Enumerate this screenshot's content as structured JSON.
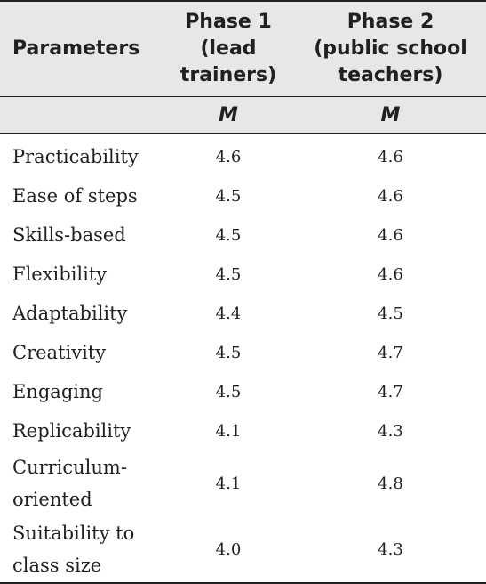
{
  "table": {
    "headers": {
      "parameters": "Parameters",
      "phase1_lines": [
        "Phase 1",
        "(lead",
        "trainers)"
      ],
      "phase2_lines": [
        "Phase 2",
        "(public school",
        "teachers)"
      ]
    },
    "subheaders": {
      "phase1": "M",
      "phase2": "M"
    },
    "rows": [
      {
        "parameter_lines": [
          "Practicability"
        ],
        "phase1": "4.6",
        "phase2": "4.6"
      },
      {
        "parameter_lines": [
          "Ease of steps"
        ],
        "phase1": "4.5",
        "phase2": "4.6"
      },
      {
        "parameter_lines": [
          "Skills-based"
        ],
        "phase1": "4.5",
        "phase2": "4.6"
      },
      {
        "parameter_lines": [
          "Flexibility"
        ],
        "phase1": "4.5",
        "phase2": "4.6"
      },
      {
        "parameter_lines": [
          "Adaptability"
        ],
        "phase1": "4.4",
        "phase2": "4.5"
      },
      {
        "parameter_lines": [
          "Creativity"
        ],
        "phase1": "4.5",
        "phase2": "4.7"
      },
      {
        "parameter_lines": [
          "Engaging"
        ],
        "phase1": "4.5",
        "phase2": "4.7"
      },
      {
        "parameter_lines": [
          "Replicability"
        ],
        "phase1": "4.1",
        "phase2": "4.3"
      },
      {
        "parameter_lines": [
          "Curriculum-",
          "oriented"
        ],
        "phase1": "4.1",
        "phase2": "4.8"
      },
      {
        "parameter_lines": [
          "Suitability to",
          "class size"
        ],
        "phase1": "4.0",
        "phase2": "4.3"
      }
    ],
    "colors": {
      "header_background": "#e6e7e8",
      "text": "#231f20",
      "rule": "#231f20"
    }
  }
}
